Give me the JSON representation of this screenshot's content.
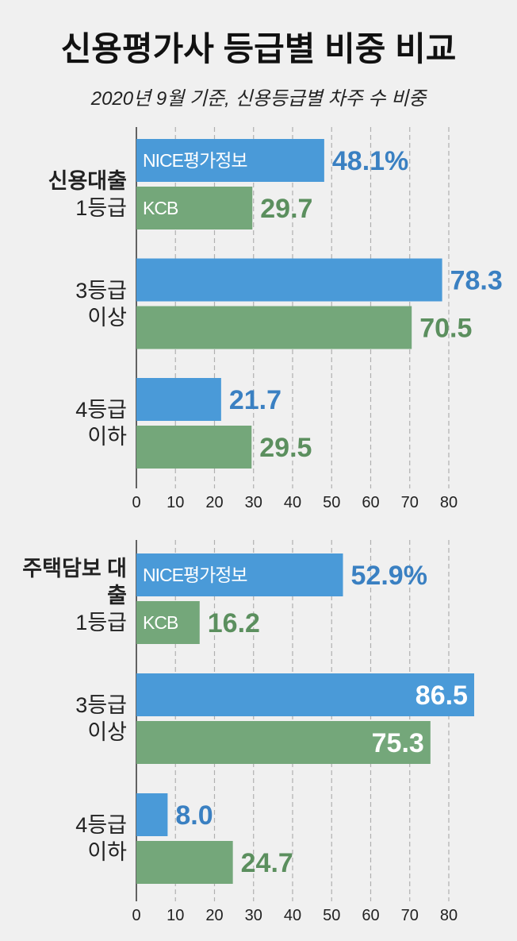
{
  "header": {
    "title": "신용평가사 등급별 비중 비교",
    "subtitle": "2020년 9월 기준, 신용등급별 차주 수 비중"
  },
  "chart_data": [
    {
      "type": "bar",
      "orientation": "horizontal",
      "group_label": "신용대출",
      "categories": [
        "1등급",
        "3등급 이상",
        "4등급 이하"
      ],
      "series": [
        {
          "name": "NICE평가정보",
          "color": "#4a9ad8",
          "label_color": "#3a80c2",
          "values": [
            48.1,
            78.3,
            21.7
          ],
          "value_labels": [
            "48.1%",
            "78.3",
            "21.7"
          ]
        },
        {
          "name": "KCB",
          "color": "#74a77a",
          "label_color": "#5b8f5e",
          "values": [
            29.7,
            70.5,
            29.5
          ],
          "value_labels": [
            "29.7",
            "70.5",
            "29.5"
          ]
        }
      ],
      "xlim": [
        0,
        85
      ],
      "xticks": [
        0,
        10,
        20,
        30,
        40,
        50,
        60,
        70,
        80
      ],
      "grid": true
    },
    {
      "type": "bar",
      "orientation": "horizontal",
      "group_label": "주택담보 대출",
      "categories": [
        "1등급",
        "3등급 이상",
        "4등급 이하"
      ],
      "series": [
        {
          "name": "NICE평가정보",
          "color": "#4a9ad8",
          "label_color": "#3a80c2",
          "values": [
            52.9,
            86.5,
            8.0
          ],
          "value_labels": [
            "52.9%",
            "86.5",
            "8.0"
          ]
        },
        {
          "name": "KCB",
          "color": "#74a77a",
          "label_color": "#5b8f5e",
          "values": [
            16.2,
            75.3,
            24.7
          ],
          "value_labels": [
            "16.2",
            "75.3",
            "24.7"
          ]
        }
      ],
      "xlim": [
        0,
        85
      ],
      "xticks": [
        0,
        10,
        20,
        30,
        40,
        50,
        60,
        70,
        80
      ],
      "grid": true
    }
  ]
}
